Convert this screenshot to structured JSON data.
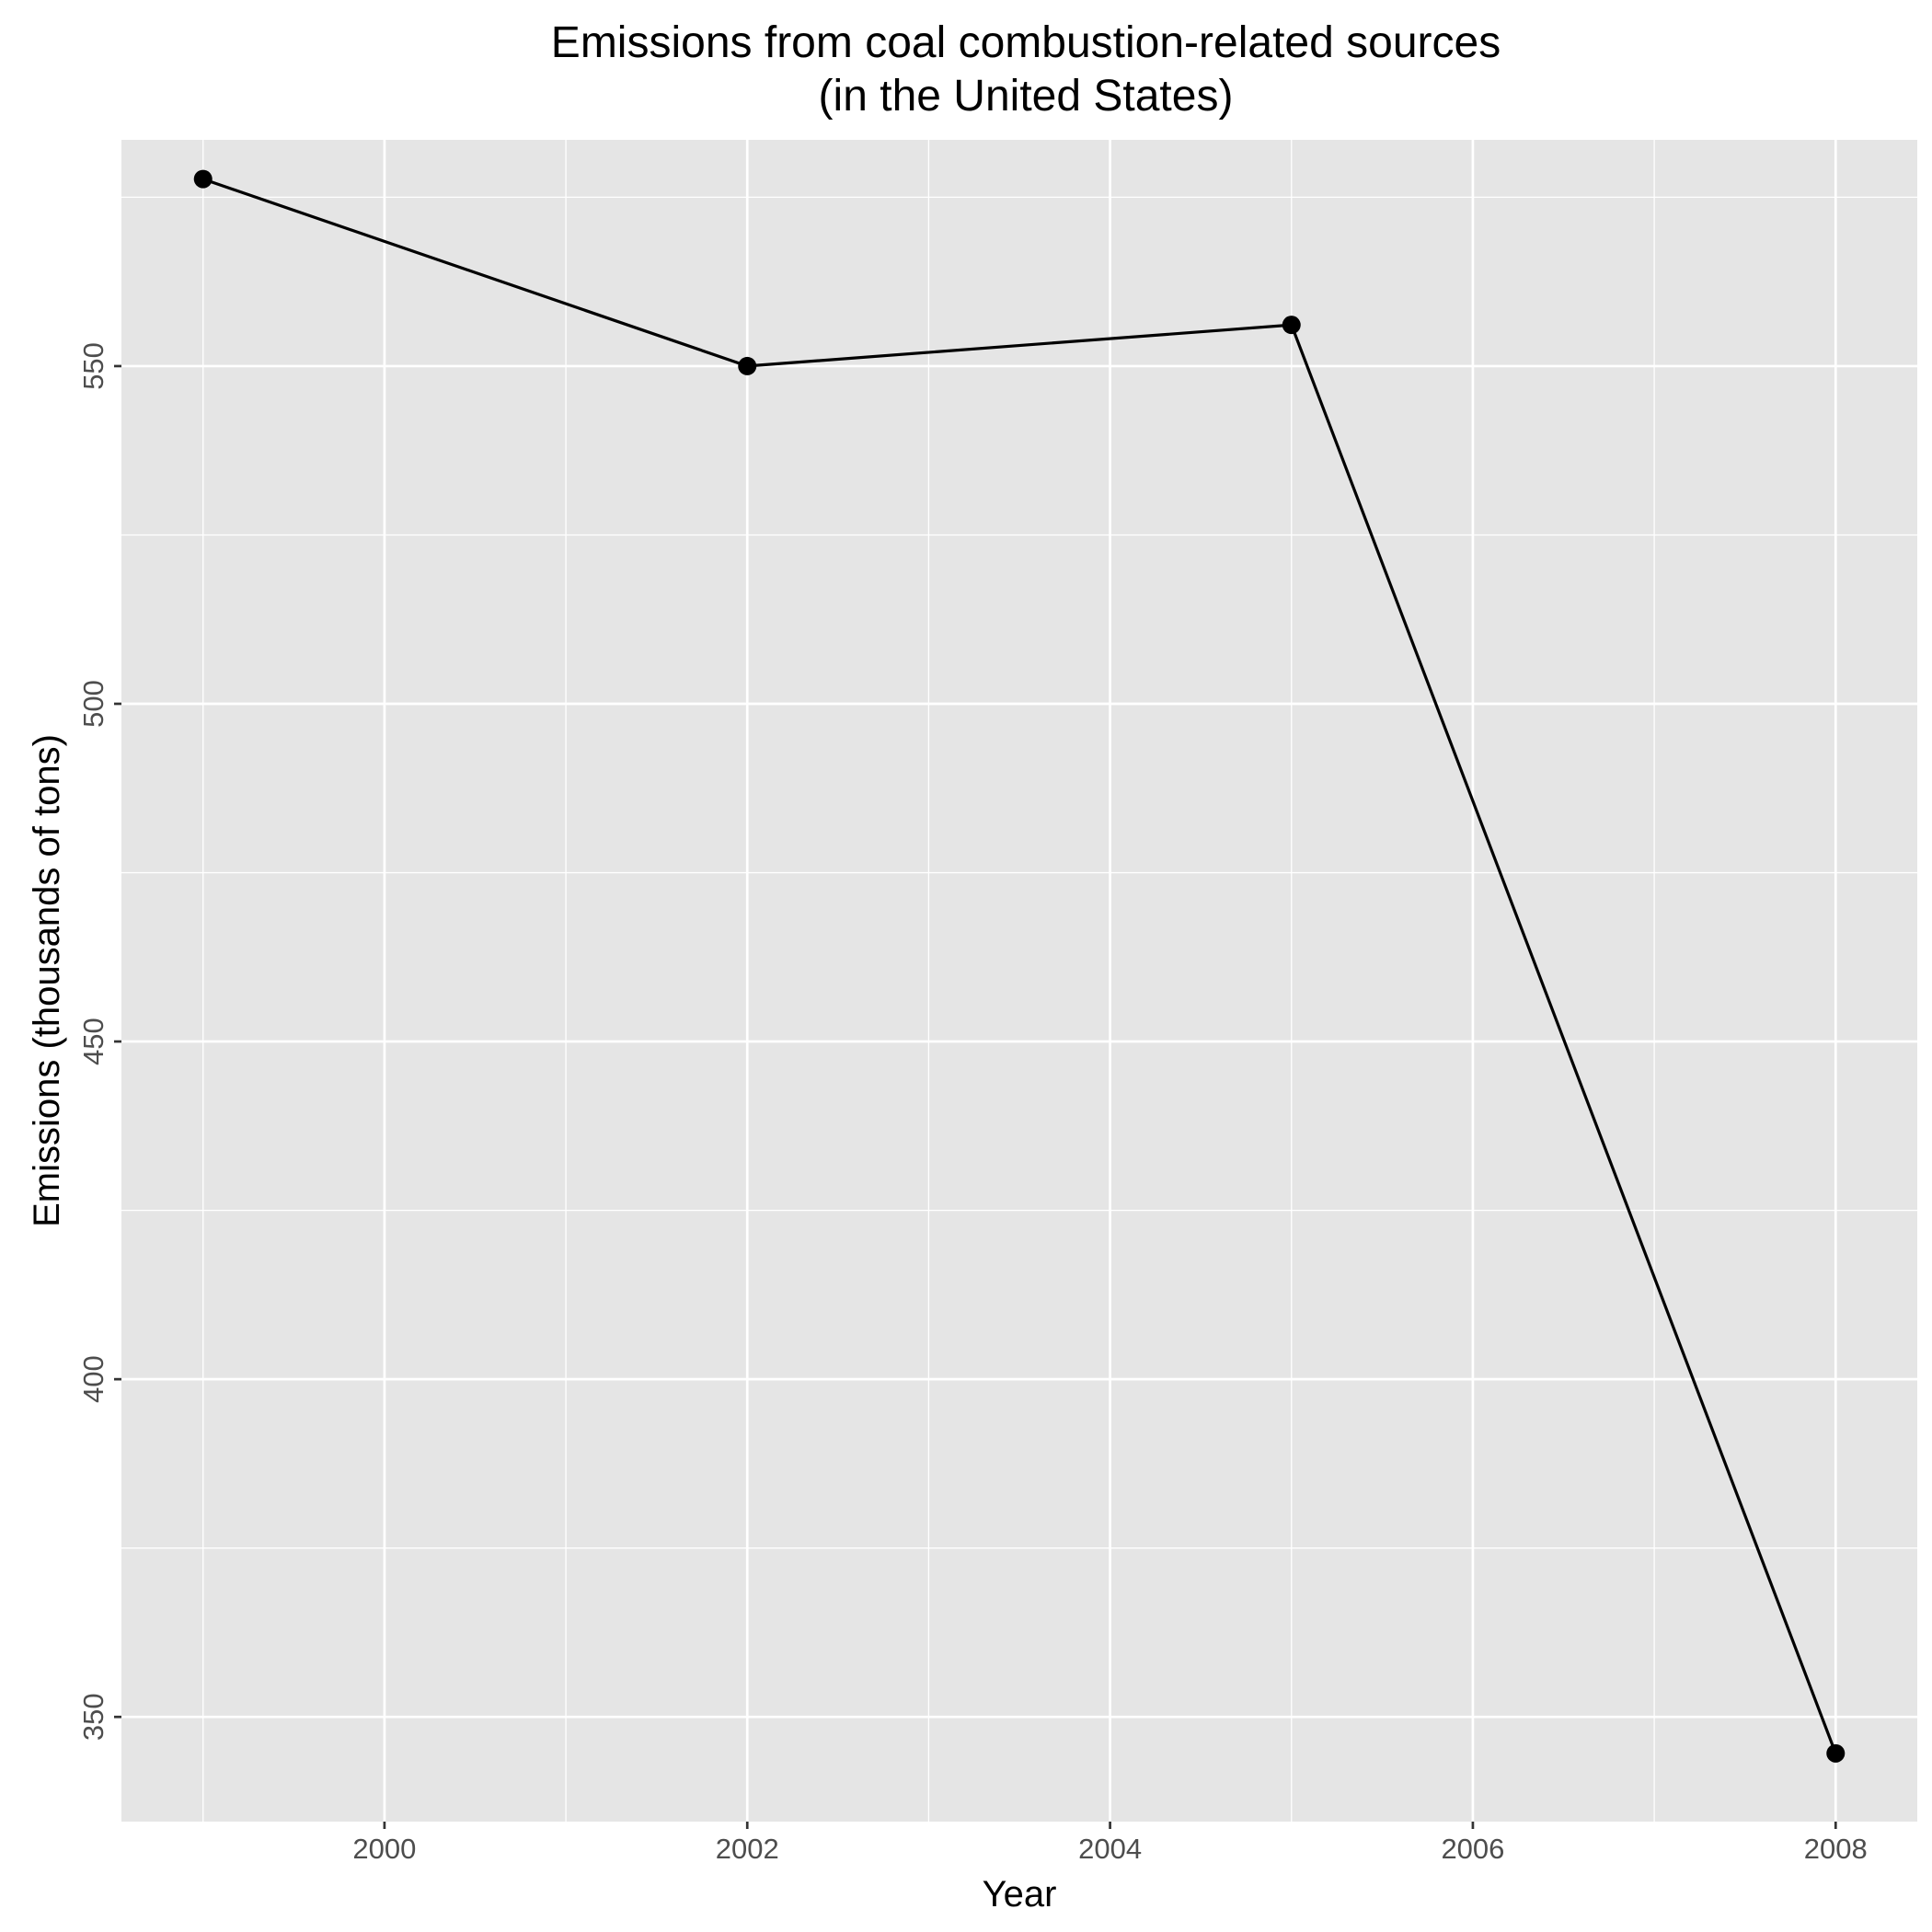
{
  "chart_data": {
    "type": "line",
    "title": [
      "Emissions from coal combustion-related sources",
      "(in the United States)"
    ],
    "xlabel": "Year",
    "ylabel": "Emissions (thousands of tons)",
    "xlim": [
      1998.55,
      2008.45
    ],
    "ylim": [
      334.5,
      583.5
    ],
    "x_ticks": [
      2000,
      2002,
      2004,
      2006,
      2008
    ],
    "x_minor_ticks": [
      1999,
      2001,
      2003,
      2005,
      2007
    ],
    "y_ticks": [
      350,
      400,
      450,
      500,
      550
    ],
    "y_minor_ticks": [
      375,
      425,
      475,
      525,
      575
    ],
    "grid": true,
    "series": [
      {
        "x": [
          1999,
          2002,
          2005,
          2008
        ],
        "values": [
          577.7,
          550.0,
          556.1,
          344.6
        ]
      }
    ],
    "colors": {
      "panel": "#e5e5e5",
      "grid": "#ffffff",
      "line": "#000000",
      "point": "#000000",
      "tick_label": "#4d4d4d",
      "tick_mark": "#333333"
    }
  }
}
